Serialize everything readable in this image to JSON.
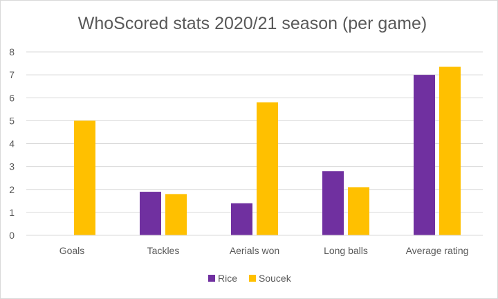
{
  "chart_data": {
    "type": "bar",
    "title": "WhoScored stats 2020/21 season (per game)",
    "xlabel": "",
    "ylabel": "",
    "categories": [
      "Goals",
      "Tackles",
      "Aerials won",
      "Long balls",
      "Average rating"
    ],
    "series": [
      {
        "name": "Rice",
        "values": [
          0,
          1.9,
          1.4,
          2.8,
          7.0
        ],
        "color": "#7030A0"
      },
      {
        "name": "Soucek",
        "values": [
          5.0,
          1.8,
          5.8,
          2.1,
          7.35
        ],
        "color": "#FFC000"
      }
    ],
    "ylim": [
      0,
      8
    ],
    "yticks": [
      "0",
      "1",
      "2",
      "3",
      "4",
      "5",
      "6",
      "7",
      "8"
    ],
    "grid": true,
    "legend": "bottom"
  }
}
